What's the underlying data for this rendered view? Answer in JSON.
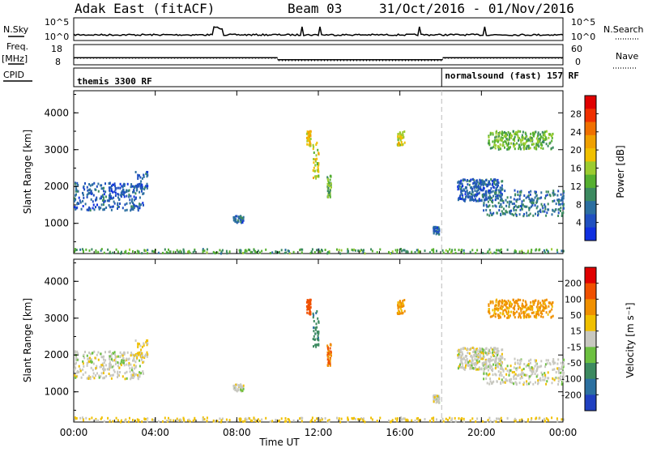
{
  "header": {
    "station": "Adak East (fitACF)",
    "beam": "Beam 03",
    "dates": "31/Oct/2016 - 01/Nov/2016"
  },
  "side_labels": {
    "nsky": "N.Sky",
    "nsearch": "N.Search",
    "freq_line1": "Freq.",
    "freq_line2": "[MHz]",
    "nave": "Nave",
    "cpid": "CPID"
  },
  "noise_panel": {
    "left_ticks": [
      "10^5",
      "10^0"
    ],
    "right_ticks": [
      "10^5",
      "10^0"
    ]
  },
  "freq_panel": {
    "left_ticks": [
      "18",
      "8"
    ],
    "right_ticks": [
      "60",
      "0"
    ],
    "freq_mhz": [
      {
        "t0": 0,
        "t1": 10,
        "value": 11.5
      },
      {
        "t0": 10,
        "t1": 18.1,
        "value": 10.5
      },
      {
        "t0": 18.1,
        "t1": 24,
        "value": 11.5
      }
    ]
  },
  "cpid_panel": {
    "mode1": "themis 3300 RF",
    "mode2": "normalsound (fast) 157 RF",
    "switch_time_h": 18.05
  },
  "x_axis": {
    "ticks": [
      "00:00",
      "04:00",
      "08:00",
      "12:00",
      "16:00",
      "20:00",
      "00:00"
    ],
    "label": "Time UT"
  },
  "power_panel": {
    "ylabel": "Slant Range [km]",
    "yticks": [
      "1000",
      "2000",
      "3000",
      "4000"
    ],
    "colorbar_label": "Power [dB]",
    "colorbar_ticks": [
      "4",
      "8",
      "12",
      "16",
      "20",
      "24",
      "28"
    ],
    "colorbar_colors": [
      "#1030e0",
      "#2050c0",
      "#2c6fa0",
      "#3c8a60",
      "#56b030",
      "#9ccc30",
      "#f0c000",
      "#f0a000",
      "#f07000",
      "#f03000",
      "#e00000"
    ]
  },
  "velocity_panel": {
    "ylabel": "Slant Range [km]",
    "yticks": [
      "1000",
      "2000",
      "3000",
      "4000"
    ],
    "colorbar_label": "Velocity [m s⁻¹]",
    "colorbar_ticks": [
      "200",
      "100",
      "50",
      "15",
      "-15",
      "-50",
      "-100",
      "-200"
    ],
    "colorbar_colors": [
      "#2040c0",
      "#2c70a0",
      "#3c8a60",
      "#6cc040",
      "#c8c8c0",
      "#f0c000",
      "#f09000",
      "#f05000",
      "#e00000"
    ]
  },
  "chart_data": {
    "type": "heatmap",
    "title": "Adak East (fitACF) Beam 03 31/Oct/2016 - 01/Nov/2016",
    "xlabel": "Time UT",
    "ylabel": "Slant Range [km]",
    "xlim_hours": [
      0,
      24
    ],
    "ylim_km": [
      180,
      4600
    ],
    "scatter_regions": [
      {
        "t0": 0.0,
        "t1": 3.4,
        "r0": 1350,
        "r1": 2100,
        "power_db": 6,
        "velocity": 0
      },
      {
        "t0": 3.0,
        "t1": 3.6,
        "r0": 1900,
        "r1": 2400,
        "power_db": 6,
        "velocity": -20
      },
      {
        "t0": 7.8,
        "t1": 8.3,
        "r0": 1000,
        "r1": 1200,
        "power_db": 6,
        "velocity": 0
      },
      {
        "t0": 11.4,
        "t1": 11.6,
        "r0": 3100,
        "r1": 3500,
        "power_db": 20,
        "velocity": -150
      },
      {
        "t0": 11.7,
        "t1": 12.0,
        "r0": 2100,
        "r1": 3200,
        "power_db": 18,
        "velocity": 60
      },
      {
        "t0": 12.4,
        "t1": 12.6,
        "r0": 1700,
        "r1": 2300,
        "power_db": 14,
        "velocity": -100
      },
      {
        "t0": 15.8,
        "t1": 16.2,
        "r0": 3100,
        "r1": 3500,
        "power_db": 18,
        "velocity": -60
      },
      {
        "t0": 17.6,
        "t1": 17.9,
        "r0": 700,
        "r1": 900,
        "power_db": 6,
        "velocity": 0
      },
      {
        "t0": 18.8,
        "t1": 21.0,
        "r0": 1600,
        "r1": 2200,
        "power_db": 6,
        "velocity": 0
      },
      {
        "t0": 20.0,
        "t1": 24.0,
        "r0": 1200,
        "r1": 1900,
        "power_db": 8,
        "velocity": 0
      },
      {
        "t0": 20.3,
        "t1": 23.5,
        "r0": 3000,
        "r1": 3500,
        "power_db": 14,
        "velocity": -60
      },
      {
        "t0": 0.0,
        "t1": 24.0,
        "r0": 180,
        "r1": 300,
        "power_db": 12,
        "velocity": -20
      }
    ]
  }
}
